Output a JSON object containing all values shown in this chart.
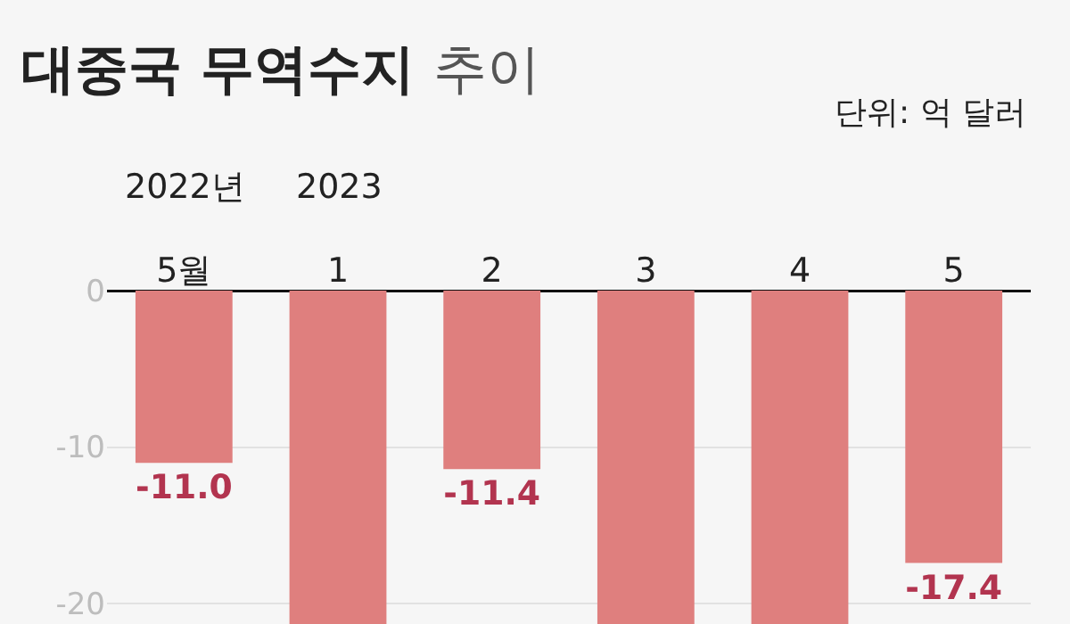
{
  "chart_data": {
    "type": "bar",
    "title": "대중국 무역수지",
    "subtitle": "추이",
    "annotations": [
      "단위: 억 달러",
      "2022년",
      "2023"
    ],
    "categories": [
      "5월",
      "1",
      "2",
      "3",
      "4",
      "5"
    ],
    "values": [
      -11.0,
      -21.3,
      -11.4,
      -21.3,
      -21.3,
      -17.4
    ],
    "value_labels": [
      "-11.0",
      null,
      "-11.4",
      null,
      null,
      "-17.4"
    ],
    "color": "#df7f7e",
    "ylim": [
      -21.3,
      0
    ],
    "yticks": [
      0,
      -10,
      -20
    ],
    "grid": "y",
    "legend": false
  }
}
